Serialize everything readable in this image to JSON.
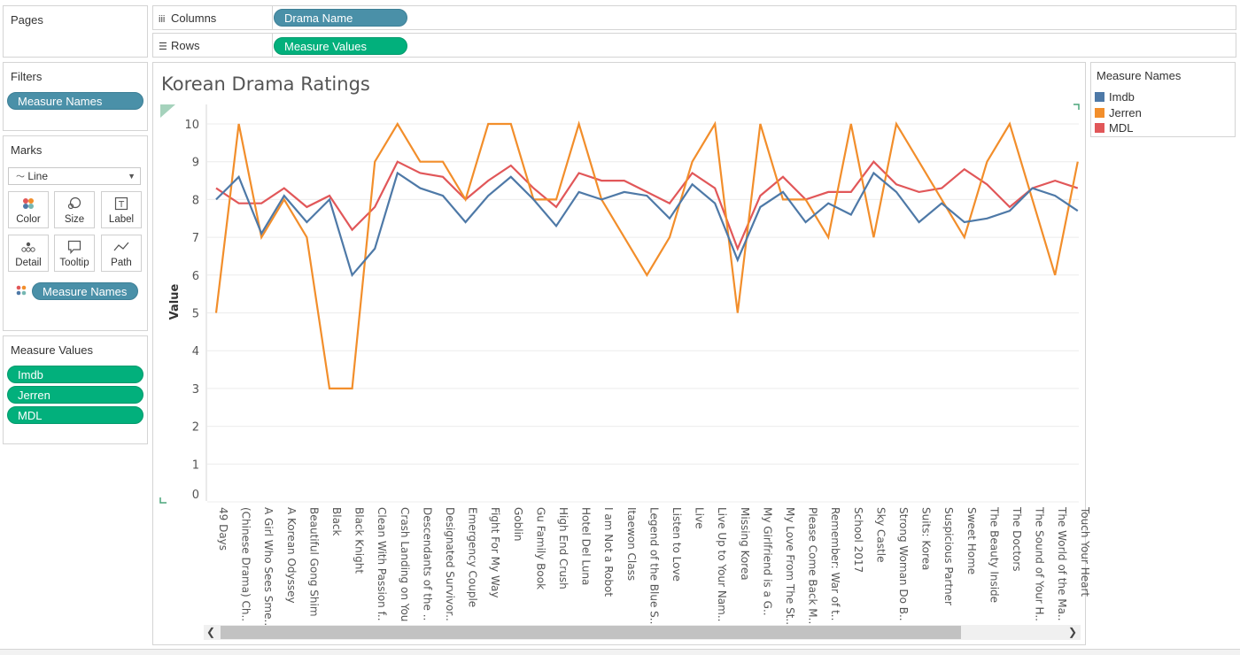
{
  "shelves": {
    "pages_label": "Pages",
    "columns_label": "Columns",
    "columns_pill": "Drama Name",
    "rows_label": "Rows",
    "rows_pill": "Measure Values"
  },
  "filters": {
    "title": "Filters",
    "pill": "Measure Names"
  },
  "marks": {
    "title": "Marks",
    "type": "Line",
    "buttons": {
      "color": "Color",
      "size": "Size",
      "label": "Label",
      "detail": "Detail",
      "tooltip": "Tooltip",
      "path": "Path"
    },
    "pill": "Measure Names"
  },
  "measure_values": {
    "title": "Measure Values",
    "items": [
      "Imdb",
      "Jerren",
      "MDL"
    ]
  },
  "legend": {
    "title": "Measure Names",
    "items": [
      {
        "name": "Imdb",
        "color": "#4e79a7"
      },
      {
        "name": "Jerren",
        "color": "#f28e2b"
      },
      {
        "name": "MDL",
        "color": "#e15759"
      }
    ]
  },
  "chart_data": {
    "type": "line",
    "title": "Korean Drama Ratings",
    "ylabel": "Value",
    "xlabel": "",
    "ylim": [
      0,
      10
    ],
    "yticks": [
      0,
      1,
      2,
      3,
      4,
      5,
      6,
      7,
      8,
      9,
      10
    ],
    "grid": "horizontal",
    "legend_position": "right",
    "categories": [
      "49 Days",
      "(Chinese Drama) Ch..",
      "A Girl Who Sees Sme..",
      "A Korean Odyssey",
      "Beautiful Gong Shim",
      "Black",
      "Black Knight",
      "Clean With Passion f..",
      "Crash Landing on You",
      "Descendants of the ..",
      "Designated Survivor..",
      "Emergency Couple",
      "Fight For My Way",
      "Goblin",
      "Gu Family Book",
      "High End Crush",
      "Hotel Del Luna",
      "I am Not a Robot",
      "Itaewon Class",
      "Legend of the Blue S..",
      "Listen to Love",
      "Live",
      "Live Up to Your Nam..",
      "Missing Korea",
      "My Girlfriend is a G..",
      "My Love From The St..",
      "Please Come Back M..",
      "Remember: War of t..",
      "School 2017",
      "Sky Castle",
      "Strong Woman Do B..",
      "Suits: Korea",
      "Suspicious Partner",
      "Sweet Home",
      "The Beauty Inside",
      "The Doctors",
      "The Sound of Your H..",
      "The World of the Ma..",
      "Touch Your Heart"
    ],
    "series": [
      {
        "name": "Imdb",
        "color": "#4e79a7",
        "values": [
          8.0,
          8.6,
          7.1,
          8.1,
          7.4,
          8.0,
          6.0,
          6.7,
          8.7,
          8.3,
          8.1,
          7.4,
          8.1,
          8.6,
          8.0,
          7.3,
          8.2,
          8.0,
          8.2,
          8.1,
          7.5,
          8.4,
          7.9,
          6.4,
          7.8,
          8.2,
          7.4,
          7.9,
          7.6,
          8.7,
          8.2,
          7.4,
          7.9,
          7.4,
          7.5,
          7.7,
          8.3,
          8.1,
          7.7
        ]
      },
      {
        "name": "Jerren",
        "color": "#f28e2b",
        "values": [
          5,
          10,
          7,
          8,
          7,
          3,
          3,
          9,
          10,
          9,
          9,
          8,
          10,
          10,
          8,
          8,
          10,
          8,
          7,
          6,
          7,
          9,
          10,
          5,
          10,
          8,
          8,
          7,
          10,
          7,
          10,
          9,
          8,
          7,
          9,
          10,
          8,
          6,
          9
        ]
      },
      {
        "name": "MDL",
        "color": "#e15759",
        "values": [
          8.3,
          7.9,
          7.9,
          8.3,
          7.8,
          8.1,
          7.2,
          7.8,
          9.0,
          8.7,
          8.6,
          8.0,
          8.5,
          8.9,
          8.3,
          7.8,
          8.7,
          8.5,
          8.5,
          8.2,
          7.9,
          8.7,
          8.3,
          6.7,
          8.1,
          8.6,
          8.0,
          8.2,
          8.2,
          9.0,
          8.4,
          8.2,
          8.3,
          8.8,
          8.4,
          7.8,
          8.3,
          8.5,
          8.3
        ]
      }
    ]
  }
}
